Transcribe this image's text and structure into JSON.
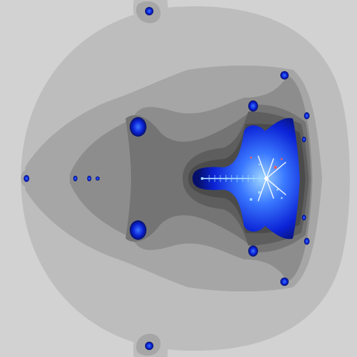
{
  "image": {
    "subject": "multibrot-fractal-render",
    "colors": {
      "level_0": "#d2d2d2",
      "level_1": "#bdbdbd",
      "level_2": "#a6a6a6",
      "level_3": "#8d8d8d",
      "level_4": "#747474",
      "level_5": "#5e5e5e",
      "level_6": "#4b4b4b",
      "set_dark": "#06106a",
      "set_mid": "#0b22d6",
      "set_bright": "#3a78ff",
      "set_glow": "#9fd6ff",
      "set_hot": "#ffffff",
      "set_accent": "#ff5a5a"
    }
  }
}
